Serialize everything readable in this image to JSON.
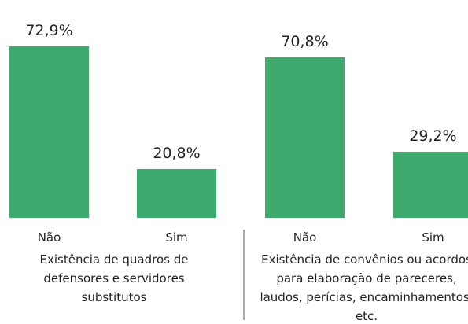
{
  "chart_data": [
    {
      "type": "bar",
      "title": "Existência de quadros de defensores e servidores substitutos",
      "categories": [
        "Não",
        "Sim"
      ],
      "values": [
        72.9,
        20.8
      ],
      "value_labels": [
        "72,9%",
        "20,8%"
      ],
      "color": "#3faa6e",
      "ylim": [
        0,
        77
      ]
    },
    {
      "type": "bar",
      "title": "Existência de convênios ou acordos para elaboração de pareceres, laudos, perícias, encaminhamentos, etc.",
      "categories": [
        "Não",
        "Sim"
      ],
      "values": [
        70.8,
        29.2
      ],
      "value_labels": [
        "70,8%",
        "29,2%"
      ],
      "color": "#3faa6e",
      "ylim": [
        0,
        80
      ]
    }
  ]
}
